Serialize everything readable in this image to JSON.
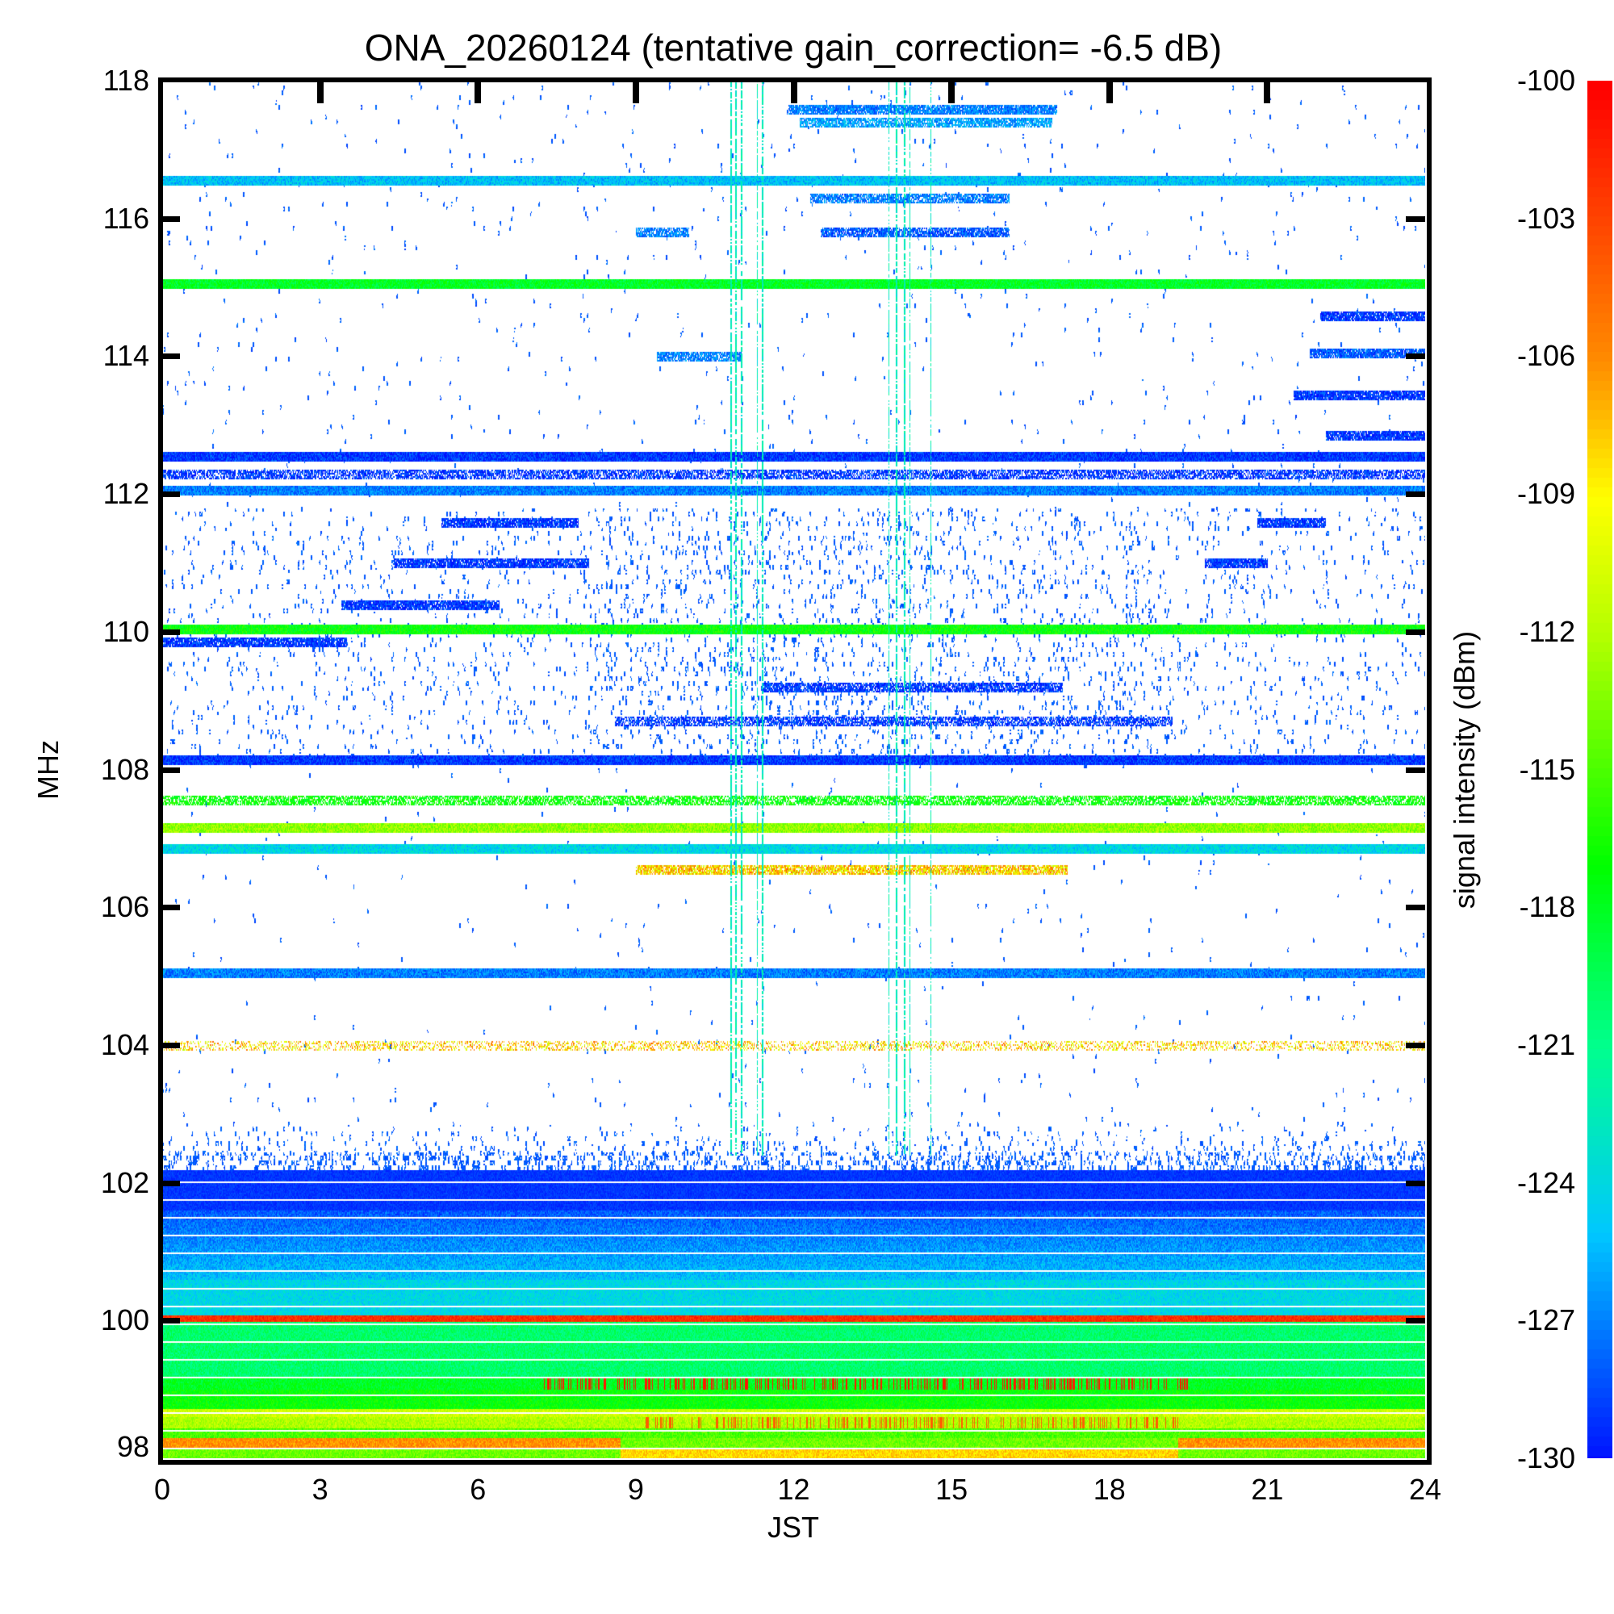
{
  "chart_data": {
    "type": "heatmap",
    "title": "ONA_20260124 (tentative gain_correction= -6.5 dB)",
    "xlabel": "JST",
    "ylabel": "MHz",
    "colorbar_label": "signal intensity (dBm)",
    "xlim": [
      0,
      24
    ],
    "ylim": [
      98,
      118
    ],
    "clim": [
      -130,
      -100
    ],
    "xticks": [
      "0",
      "3",
      "6",
      "9",
      "12",
      "15",
      "18",
      "21",
      "24"
    ],
    "yticks": [
      "98",
      "100",
      "102",
      "104",
      "106",
      "108",
      "110",
      "112",
      "114",
      "116",
      "118"
    ],
    "cbticks": [
      "-100",
      "-103",
      "-106",
      "-109",
      "-112",
      "-115",
      "-118",
      "-121",
      "-124",
      "-127",
      "-130"
    ],
    "colormap": [
      {
        "v": -130,
        "c": "#0010ff"
      },
      {
        "v": -125,
        "c": "#00c8ff"
      },
      {
        "v": -121,
        "c": "#00ff90"
      },
      {
        "v": -117,
        "c": "#00ff00"
      },
      {
        "v": -112,
        "c": "#b4ff00"
      },
      {
        "v": -109,
        "c": "#ffff00"
      },
      {
        "v": -106,
        "c": "#ff8c00"
      },
      {
        "v": -100,
        "c": "#ff0000"
      }
    ],
    "bands": [
      {
        "f": 116.55,
        "t": [
          0,
          24
        ],
        "dbm": -125,
        "density": 1.0
      },
      {
        "f": 115.05,
        "t": [
          0,
          24
        ],
        "dbm": -118,
        "density": 1.0
      },
      {
        "f": 112.55,
        "t": [
          0,
          24
        ],
        "dbm": -129,
        "density": 1.0
      },
      {
        "f": 112.3,
        "t": [
          0,
          24
        ],
        "dbm": -129,
        "density": 0.7
      },
      {
        "f": 112.05,
        "t": [
          0,
          24
        ],
        "dbm": -127,
        "density": 1.0
      },
      {
        "f": 110.05,
        "t": [
          0,
          24
        ],
        "dbm": -117,
        "density": 1.0
      },
      {
        "f": 108.15,
        "t": [
          0,
          24
        ],
        "dbm": -129,
        "density": 1.0
      },
      {
        "f": 107.57,
        "t": [
          0,
          24
        ],
        "dbm": -117,
        "density": 0.7
      },
      {
        "f": 107.16,
        "t": [
          0,
          24
        ],
        "dbm": -113,
        "density": 1.0
      },
      {
        "f": 106.86,
        "t": [
          0,
          24
        ],
        "dbm": -124,
        "density": 1.0
      },
      {
        "f": 106.56,
        "t": [
          9,
          17.2
        ],
        "dbm": -108,
        "density": 0.8
      },
      {
        "f": 105.06,
        "t": [
          0,
          24
        ],
        "dbm": -127,
        "density": 1.0
      },
      {
        "f": 104.0,
        "t": [
          0,
          24
        ],
        "dbm": -108,
        "density": 0.35
      },
      {
        "f": 117.6,
        "t": [
          11.9,
          17
        ],
        "dbm": -127,
        "density": 0.9
      },
      {
        "f": 117.4,
        "t": [
          12.1,
          16.9
        ],
        "dbm": -126,
        "density": 0.8
      },
      {
        "f": 116.3,
        "t": [
          12.3,
          16.1
        ],
        "dbm": -127,
        "density": 0.8
      },
      {
        "f": 115.8,
        "t": [
          12.5,
          16.1
        ],
        "dbm": -128,
        "density": 0.8
      },
      {
        "f": 115.8,
        "t": [
          9,
          10
        ],
        "dbm": -127,
        "density": 0.8
      },
      {
        "f": 114.0,
        "t": [
          9.4,
          11
        ],
        "dbm": -127,
        "density": 0.8
      },
      {
        "f": 114.6,
        "t": [
          22,
          24
        ],
        "dbm": -129,
        "density": 0.9
      },
      {
        "f": 114.05,
        "t": [
          21.8,
          24
        ],
        "dbm": -128,
        "density": 0.9
      },
      {
        "f": 113.45,
        "t": [
          21.5,
          24
        ],
        "dbm": -129,
        "density": 0.9
      },
      {
        "f": 112.85,
        "t": [
          22.1,
          24
        ],
        "dbm": -129,
        "density": 0.9
      },
      {
        "f": 111.6,
        "t": [
          5.3,
          7.9
        ],
        "dbm": -129,
        "density": 0.9
      },
      {
        "f": 111.6,
        "t": [
          20.8,
          22.1
        ],
        "dbm": -129,
        "density": 0.9
      },
      {
        "f": 111.0,
        "t": [
          4.4,
          8.1
        ],
        "dbm": -129,
        "density": 0.9
      },
      {
        "f": 111.0,
        "t": [
          19.8,
          21
        ],
        "dbm": -129,
        "density": 0.9
      },
      {
        "f": 110.4,
        "t": [
          3.4,
          6.4
        ],
        "dbm": -129,
        "density": 0.9
      },
      {
        "f": 109.85,
        "t": [
          0,
          3.5
        ],
        "dbm": -129,
        "density": 0.9
      },
      {
        "f": 109.2,
        "t": [
          11.4,
          17.1
        ],
        "dbm": -129,
        "density": 0.8
      },
      {
        "f": 108.7,
        "t": [
          8.6,
          19.2
        ],
        "dbm": -129,
        "density": 0.7
      }
    ],
    "vertical_streaks_hours": [
      10.8,
      10.9,
      11.0,
      11.3,
      11.4,
      13.8,
      13.95,
      14.1,
      14.2,
      14.6
    ]
  }
}
